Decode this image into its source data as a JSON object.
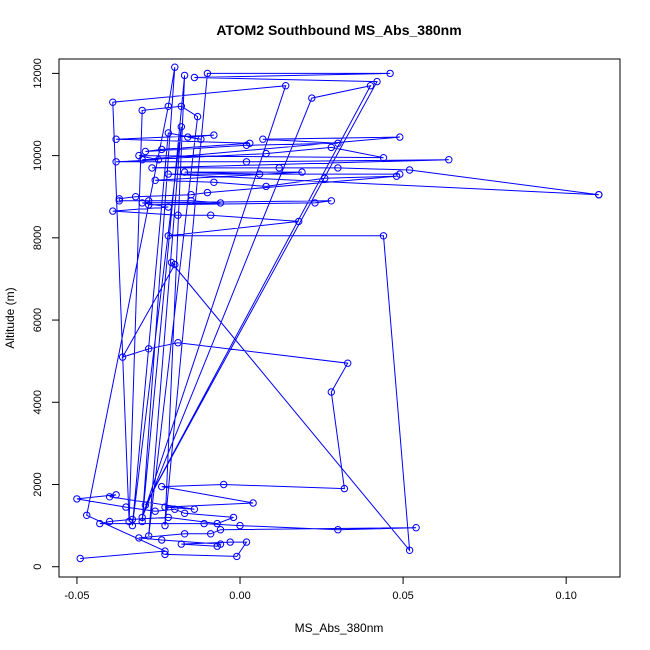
{
  "chart_data": {
    "type": "line",
    "title": "ATOM2 Southbound MS_Abs_380nm",
    "xlabel": "MS_Abs_380nm",
    "ylabel": "Altitude (m)",
    "xlim": [
      -0.0555,
      0.1165
    ],
    "ylim": [
      -250,
      12350
    ],
    "xticks": [
      -0.05,
      0.0,
      0.05,
      0.1
    ],
    "xtick_labels": [
      "-0.05",
      "0.00",
      "0.05",
      "0.10"
    ],
    "yticks": [
      0,
      2000,
      4000,
      6000,
      8000,
      10000,
      12000
    ],
    "ytick_labels": [
      "0",
      "2000",
      "4000",
      "6000",
      "8000",
      "10000",
      "12000"
    ],
    "series": [
      {
        "color": "#0000ff",
        "marker": "open-circle",
        "points": [
          [
            -0.049,
            200
          ],
          [
            -0.023,
            380
          ],
          [
            -0.047,
            1250
          ],
          [
            -0.022,
            11200
          ],
          [
            -0.02,
            12150
          ],
          [
            -0.03,
            1100
          ],
          [
            -0.017,
            11950
          ],
          [
            -0.023,
            1000
          ],
          [
            -0.01,
            12000
          ],
          [
            0.046,
            12000
          ],
          [
            -0.014,
            11900
          ],
          [
            0.042,
            11800
          ],
          [
            -0.029,
            1500
          ],
          [
            0.04,
            11700
          ],
          [
            0.022,
            11400
          ],
          [
            -0.03,
            1200
          ],
          [
            0.014,
            11700
          ],
          [
            -0.039,
            11300
          ],
          [
            -0.034,
            1100
          ],
          [
            -0.03,
            11100
          ],
          [
            -0.018,
            11200
          ],
          [
            -0.013,
            10950
          ],
          [
            -0.028,
            750
          ],
          [
            -0.018,
            10700
          ],
          [
            -0.033,
            1000
          ],
          [
            -0.022,
            10550
          ],
          [
            -0.012,
            10400
          ],
          [
            -0.016,
            10450
          ],
          [
            -0.008,
            10500
          ],
          [
            -0.038,
            10400
          ],
          [
            0.003,
            10300
          ],
          [
            -0.024,
            10150
          ],
          [
            -0.029,
            10100
          ],
          [
            0.002,
            10250
          ],
          [
            0.03,
            10300
          ],
          [
            0.007,
            10400
          ],
          [
            0.049,
            10450
          ],
          [
            -0.03,
            9900
          ],
          [
            0.008,
            10050
          ],
          [
            0.028,
            10200
          ],
          [
            0.044,
            9950
          ],
          [
            -0.031,
            10000
          ],
          [
            -0.025,
            9900
          ],
          [
            -0.038,
            9850
          ],
          [
            0.002,
            9850
          ],
          [
            0.064,
            9900
          ],
          [
            -0.027,
            9700
          ],
          [
            0.012,
            9700
          ],
          [
            0.03,
            9700
          ],
          [
            0.052,
            9650
          ],
          [
            0.11,
            9050
          ],
          [
            0.11,
            9050
          ],
          [
            -0.022,
            9550
          ],
          [
            0.049,
            9550
          ],
          [
            0.006,
            9550
          ],
          [
            -0.017,
            9600
          ],
          [
            0.019,
            9600
          ],
          [
            -0.026,
            9400
          ],
          [
            -0.008,
            9350
          ],
          [
            0.008,
            9250
          ],
          [
            0.026,
            9450
          ],
          [
            0.048,
            9500
          ],
          [
            -0.01,
            9100
          ],
          [
            -0.015,
            9050
          ],
          [
            -0.032,
            9000
          ],
          [
            -0.037,
            8950
          ],
          [
            -0.037,
            8900
          ],
          [
            -0.028,
            8900
          ],
          [
            -0.015,
            8900
          ],
          [
            -0.006,
            8850
          ],
          [
            -0.028,
            8800
          ],
          [
            0.023,
            8850
          ],
          [
            0.028,
            8900
          ],
          [
            -0.03,
            8850
          ],
          [
            -0.022,
            8750
          ],
          [
            -0.039,
            8650
          ],
          [
            -0.019,
            8550
          ],
          [
            -0.009,
            8550
          ],
          [
            0.018,
            8400
          ],
          [
            -0.022,
            8050
          ],
          [
            0.044,
            8050
          ],
          [
            0.052,
            400
          ],
          [
            -0.021,
            7400
          ],
          [
            -0.02,
            7350
          ],
          [
            -0.036,
            5100
          ],
          [
            -0.028,
            5300
          ],
          [
            -0.019,
            5450
          ],
          [
            0.033,
            4950
          ],
          [
            0.028,
            4250
          ],
          [
            0.032,
            1900
          ],
          [
            -0.005,
            2000
          ],
          [
            -0.024,
            1950
          ],
          [
            0.004,
            1550
          ],
          [
            -0.023,
            1450
          ],
          [
            -0.014,
            1400
          ],
          [
            -0.04,
            1700
          ],
          [
            -0.038,
            1750
          ],
          [
            -0.05,
            1650
          ],
          [
            -0.035,
            1450
          ],
          [
            -0.026,
            1350
          ],
          [
            -0.02,
            1400
          ],
          [
            -0.017,
            1300
          ],
          [
            -0.002,
            1200
          ],
          [
            -0.007,
            1050
          ],
          [
            -0.022,
            1200
          ],
          [
            -0.033,
            1150
          ],
          [
            -0.04,
            1100
          ],
          [
            -0.043,
            1050
          ],
          [
            -0.011,
            1050
          ],
          [
            0.0,
            1000
          ],
          [
            0.03,
            900
          ],
          [
            0.054,
            950
          ],
          [
            -0.006,
            900
          ],
          [
            -0.009,
            800
          ],
          [
            -0.017,
            800
          ],
          [
            -0.031,
            700
          ],
          [
            -0.024,
            650
          ],
          [
            -0.006,
            550
          ],
          [
            -0.007,
            500
          ],
          [
            -0.018,
            550
          ],
          [
            -0.003,
            600
          ],
          [
            0.002,
            600
          ],
          [
            -0.001,
            250
          ],
          [
            -0.023,
            300
          ]
        ]
      }
    ]
  }
}
